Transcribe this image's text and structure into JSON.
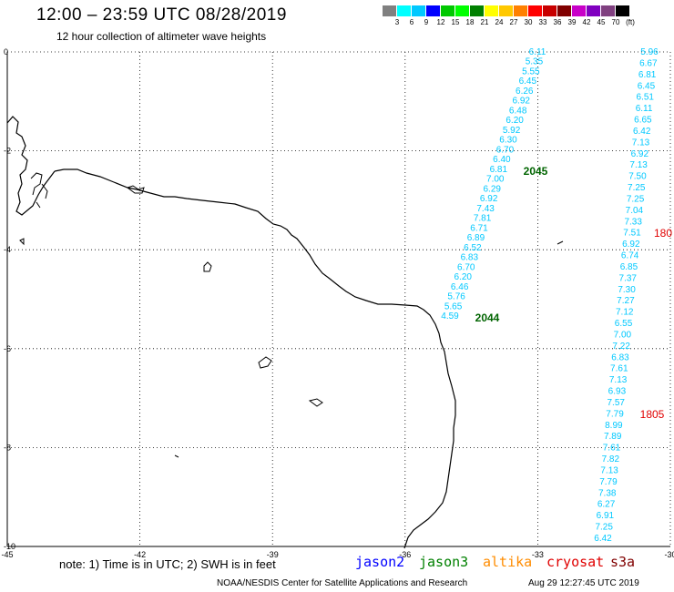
{
  "header": {
    "title": "12:00 – 23:59 UTC 08/28/2019",
    "subtitle": "12 hour collection of altimeter wave heights"
  },
  "legend": {
    "colors": [
      "#808080",
      "#00ffff",
      "#00c8ff",
      "#0000ff",
      "#00c800",
      "#00ff00",
      "#008000",
      "#ffff00",
      "#ffc800",
      "#ff8000",
      "#ff0000",
      "#c80000",
      "#800000",
      "#c800c8",
      "#8000c0",
      "#804080",
      "#000000"
    ],
    "labels": [
      "3",
      "6",
      "9",
      "12",
      "15",
      "18",
      "21",
      "24",
      "27",
      "30",
      "33",
      "36",
      "39",
      "42",
      "45",
      "70",
      "(ft)"
    ]
  },
  "axes": {
    "x_ticks": [
      "-45",
      "-42",
      "-39",
      "-36",
      "-33",
      "-30"
    ],
    "y_ticks": [
      "0",
      "-2",
      "-4",
      "-6",
      "-8",
      "-10"
    ],
    "xlim": [
      -45,
      -30
    ],
    "ylim": [
      -10,
      0
    ]
  },
  "tracks": [
    {
      "name": "track-2045",
      "time_label": "2045",
      "time_color": "#006400",
      "color": "#00c8ff",
      "values": [
        "6.11",
        "5.35",
        "5.55",
        "6.45",
        "6.26",
        "6.92",
        "6.48",
        "6.20",
        "5.92",
        "6.30",
        "6.70",
        "6.40",
        "6.81",
        "7.00",
        "6.29",
        "6.92",
        "7.43",
        "7.81",
        "6.71",
        "6.89",
        "6.52",
        "6.83",
        "6.70",
        "6.20",
        "6.46",
        "5.76",
        "5.65",
        "4.59"
      ]
    },
    {
      "name": "track-2044",
      "time_label": "2044",
      "time_color": "#006400"
    },
    {
      "name": "track-1805",
      "time_label": "1805",
      "time_color": "#e00000",
      "color": "#00c8ff",
      "values": [
        "5.96",
        "6.67",
        "6.81",
        "6.45",
        "6.51",
        "6.11",
        "6.65",
        "6.42",
        "7.13",
        "6.92",
        "7.13",
        "7.50",
        "7.25",
        "7.25",
        "7.04",
        "7.33",
        "7.51",
        "6.92",
        "6.74",
        "6.85",
        "7.37",
        "7.30",
        "7.27",
        "7.12",
        "6.55",
        "7.00",
        "7.22",
        "6.83",
        "7.61",
        "7.13",
        "6.93",
        "7.57",
        "7.79",
        "8.99",
        "7.89",
        "7.61",
        "7.82",
        "7.13",
        "7.79",
        "7.38",
        "6.27",
        "6.91",
        "7.25",
        "6.42"
      ]
    },
    {
      "name": "track-180",
      "time_label": "180",
      "time_color": "#e00000"
    }
  ],
  "footer": {
    "note": "note:  1)  Time is in UTC;  2)  SWH is in feet",
    "satellites": [
      {
        "name": "jason2",
        "color": "#0000ff"
      },
      {
        "name": "jason3",
        "color": "#008000"
      },
      {
        "name": "altika",
        "color": "#ff8c00"
      },
      {
        "name": "cryosat",
        "color": "#e00000"
      },
      {
        "name": "s3a",
        "color": "#800000"
      }
    ],
    "credit": "NOAA/NESDIS Center for Satellite Applications and Research",
    "timestamp": "Aug 29 12:27:45 UTC 2019"
  }
}
